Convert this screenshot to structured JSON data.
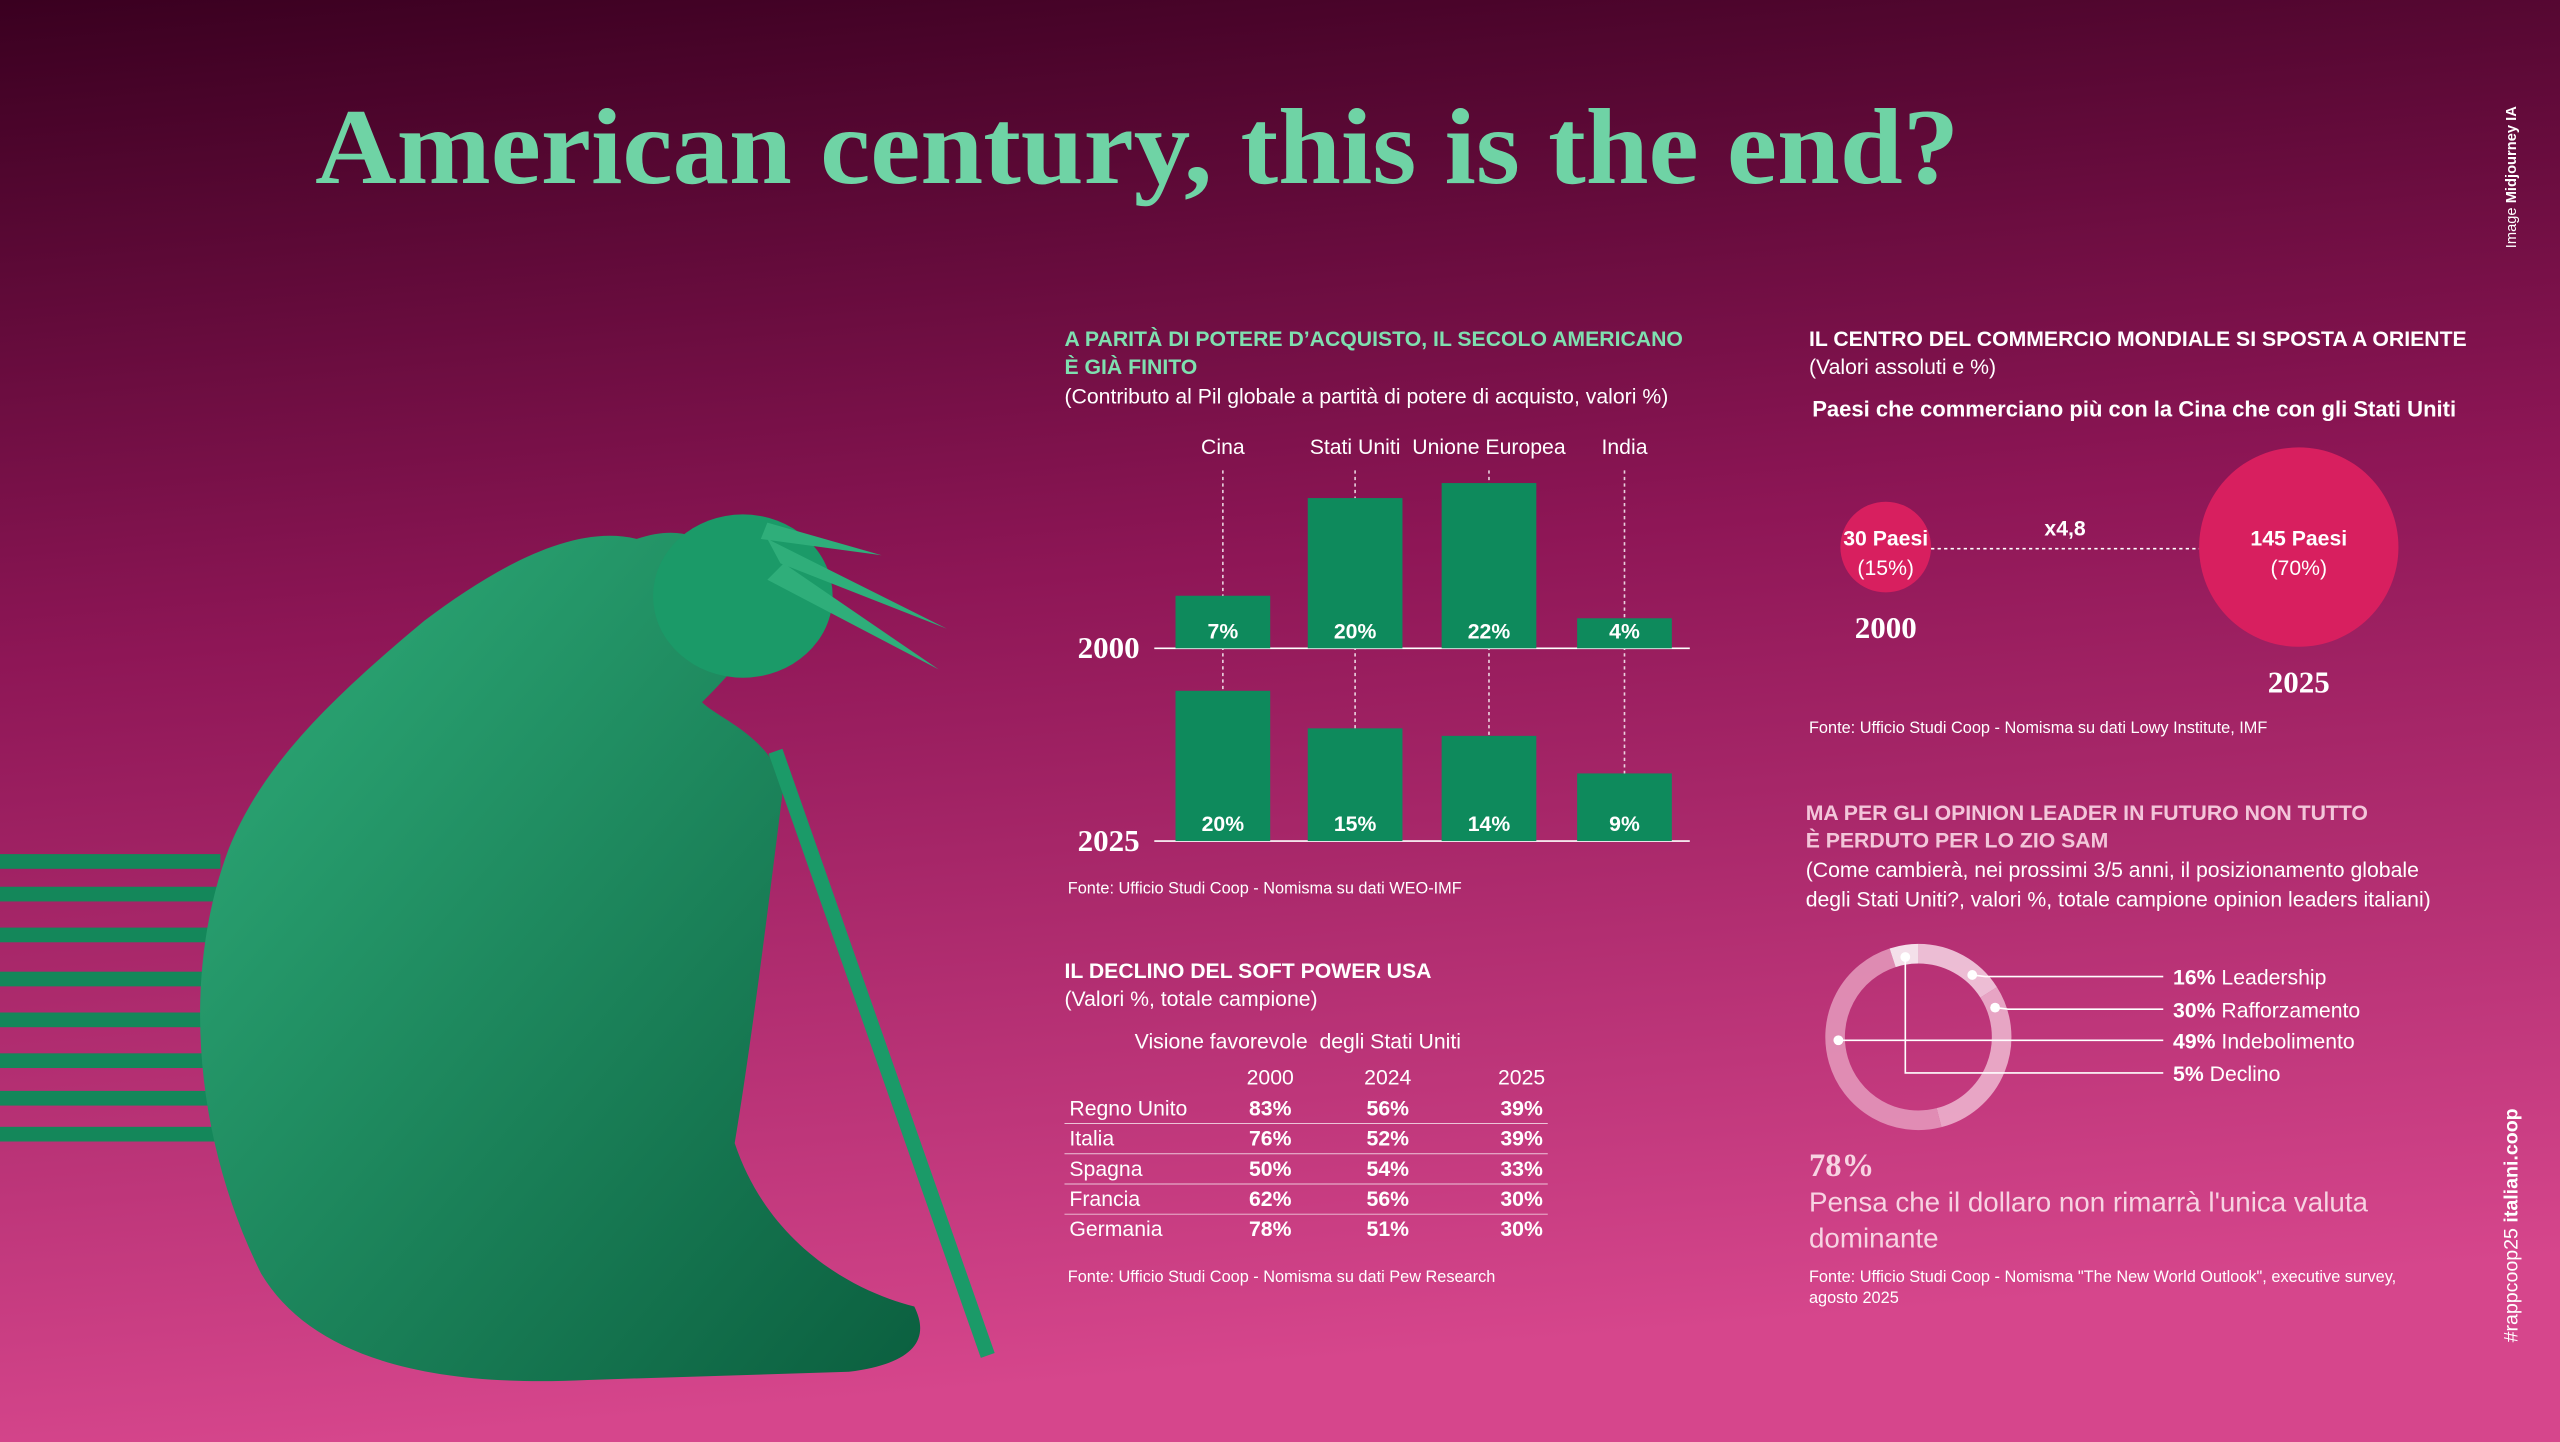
{
  "title": "American century, this is the end?",
  "image_credit": {
    "prefix": "Image",
    "name": "Midjourney IA"
  },
  "tag": {
    "hashtag": "#rappcoop25",
    "site": "italiani.coop"
  },
  "chart_data": [
    {
      "type": "bar",
      "title": [
        "A PARITÀ DI POTERE D’ACQUISTO, IL SECOLO AMERICANO",
        "È GIÀ FINITO"
      ],
      "subtitle": "(Contributo al Pil globale a partità di potere di acquisto, valori %)",
      "categories": [
        "Cina",
        "Stati Uniti",
        "Unione Europea",
        "India"
      ],
      "series": [
        {
          "name": "2000",
          "color": "#0e8a5c",
          "values": [
            7,
            20,
            22,
            4
          ],
          "value_labels": [
            "7%",
            "20%",
            "22%",
            "4%"
          ]
        },
        {
          "name": "2025",
          "color": "#0e8a5c",
          "values": [
            20,
            15,
            14,
            9
          ],
          "value_labels": [
            "20%",
            "15%",
            "14%",
            "9%"
          ]
        }
      ],
      "source": "Fonte: Ufficio Studi Coop - Nomisma su dati WEO-IMF"
    },
    {
      "type": "bubble",
      "title": "IL CENTRO DEL COMMERCIO MONDIALE SI SPOSTA A ORIENTE",
      "subtitle": "(Valori assoluti e %)",
      "note": "Paesi che commerciano più con la Cina che con gli Stati Uniti",
      "categories": [
        "2000",
        "2025"
      ],
      "values": [
        30,
        145
      ],
      "value_labels": [
        "30 Paesi",
        "145 Paesi"
      ],
      "share_labels": [
        "(15%)",
        "(70%)"
      ],
      "ratio_label": "x4,8",
      "color": "#d81f5f",
      "source": "Fonte: Ufficio Studi Coop - Nomisma su dati Lowy Institute, IMF"
    },
    {
      "type": "donut",
      "title": [
        "MA PER GLI OPINION LEADER IN FUTURO NON TUTTO",
        "È PERDUTO PER LO ZIO SAM"
      ],
      "subtitle": [
        "(Come cambierà, nei prossimi 3/5 anni, il posizionamento globale",
        "degli Stati Uniti?, valori %, totale campione opinion leaders italiani)"
      ],
      "categories": [
        "Leadership",
        "Rafforzamento",
        "Indebolimento",
        "Declino"
      ],
      "values": [
        16,
        30,
        49,
        5
      ],
      "value_labels": [
        "16%",
        "30%",
        "49%",
        "5%"
      ],
      "colors": [
        "#f6d6e5",
        "#eeb8d1",
        "#e59bbd",
        "#ffffff"
      ],
      "highlight": {
        "label": "78%",
        "text": [
          "Pensa che il dollaro non rimarrà l'unica valuta",
          "dominante"
        ]
      },
      "source": [
        "Fonte: Ufficio Studi Coop - Nomisma \"The New World Outlook\", executive survey,",
        "agosto 2025"
      ]
    }
  ],
  "table": {
    "title": "IL DECLINO DEL SOFT POWER USA",
    "subtitle": "(Valori %, totale campione)",
    "caption": "Visione favorevole  degli Stati Uniti",
    "columns": [
      "2000",
      "2024",
      "2025"
    ],
    "rows": [
      [
        "Regno Unito",
        "83%",
        "56%",
        "39%"
      ],
      [
        "Italia",
        "76%",
        "52%",
        "39%"
      ],
      [
        "Spagna",
        "50%",
        "54%",
        "33%"
      ],
      [
        "Francia",
        "62%",
        "56%",
        "30%"
      ],
      [
        "Germania",
        "78%",
        "51%",
        "30%"
      ]
    ],
    "source": "Fonte: Ufficio Studi Coop - Nomisma su dati Pew Research"
  }
}
